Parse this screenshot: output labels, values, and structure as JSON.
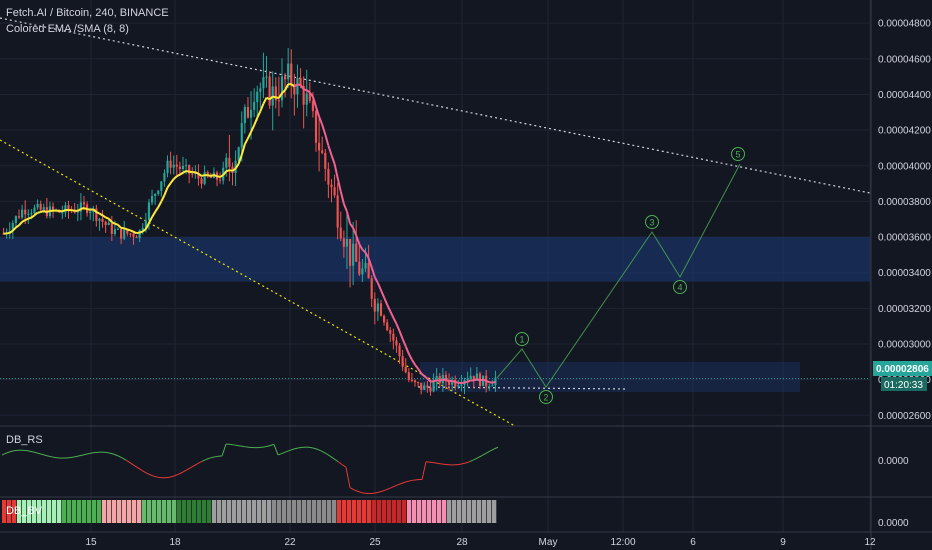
{
  "legend": {
    "symbol_line": "Fetch.AI / Bitcoin, 240, BINANCE",
    "indicator_line": "Colored EMA /SMA (8, 8)",
    "rs_label": "DB_RS",
    "bottom_label": "DB_BV"
  },
  "price_badge": {
    "value": "0.00002806",
    "countdown": "01:20:33"
  },
  "osc_axis_label": "0.0000",
  "osc2_axis_label": "0.0000",
  "colors": {
    "background": "#131722",
    "up": "#26a69a",
    "down": "#ef5350",
    "ema_up": "#ffeb3b",
    "ema_down": "#f06292",
    "wave": "#4caf50",
    "zone": "#1c3a7a",
    "trend_yellow": "#e6e600",
    "trend_white": "#d1d4dc"
  },
  "chart_data": [
    {
      "type": "candlestick",
      "title": "Fetch.AI / Bitcoin, 240, BINANCE",
      "y_axis_ticks": [
        "0.00004800",
        "0.00004600",
        "0.00004400",
        "0.00004200",
        "0.00004000",
        "0.00003800",
        "0.00003600",
        "0.00003400",
        "0.00003200",
        "0.00003000",
        "0.00002800",
        "0.00002600"
      ],
      "x_axis_ticks": [
        "15",
        "18",
        "22",
        "25",
        "28",
        "May",
        "12:00",
        "6",
        "9",
        "12"
      ],
      "ylim": [
        2.54e-05,
        4.93e-05
      ],
      "current_price": 2.806e-05,
      "price_path": [
        {
          "x": 1,
          "y": 3.62e-05
        },
        {
          "x": 5,
          "y": 3.76e-05
        },
        {
          "x": 12,
          "y": 3.74e-05
        },
        {
          "x": 18,
          "y": 3.77e-05
        },
        {
          "x": 22,
          "y": 3.65e-05
        },
        {
          "x": 24,
          "y": 3.62e-05
        },
        {
          "x": 28,
          "y": 3.62e-05
        },
        {
          "x": 30,
          "y": 3.78e-05
        },
        {
          "x": 34,
          "y": 4.02e-05
        },
        {
          "x": 40,
          "y": 3.93e-05
        },
        {
          "x": 44,
          "y": 3.93e-05
        },
        {
          "x": 47,
          "y": 4.05e-05
        },
        {
          "x": 51,
          "y": 4.45e-05
        },
        {
          "x": 55,
          "y": 4.4e-05
        },
        {
          "x": 58,
          "y": 4.5e-05
        },
        {
          "x": 61,
          "y": 4.4e-05
        },
        {
          "x": 64,
          "y": 4.1e-05
        },
        {
          "x": 67,
          "y": 3.8e-05
        },
        {
          "x": 70,
          "y": 3.5e-05
        },
        {
          "x": 73,
          "y": 3.38e-05
        },
        {
          "x": 76,
          "y": 3.2e-05
        },
        {
          "x": 79,
          "y": 3e-05
        },
        {
          "x": 82,
          "y": 2.78e-05
        },
        {
          "x": 85,
          "y": 2.75e-05
        },
        {
          "x": 88,
          "y": 2.8e-05
        },
        {
          "x": 91,
          "y": 2.79e-05
        },
        {
          "x": 94,
          "y": 2.83e-05
        },
        {
          "x": 97,
          "y": 2.78e-05
        },
        {
          "x": 99,
          "y": 2.806e-05
        }
      ],
      "wave_labels": [
        {
          "label": "1",
          "x": "28 Apr (proj.)",
          "y": 2.93e-05
        },
        {
          "label": "2",
          "x": "May (proj.)",
          "y": 2.7e-05
        },
        {
          "label": "3",
          "x": "May (proj.)",
          "y": 3.63e-05
        },
        {
          "label": "4",
          "x": "6 May (proj.)",
          "y": 3.34e-05
        },
        {
          "label": "5",
          "x": "7 May (proj.)",
          "y": 4.04e-05
        }
      ],
      "zones": [
        {
          "from": 3.35e-05,
          "to": 3.6e-05
        },
        {
          "from": 2.73e-05,
          "to": 2.9e-05
        }
      ]
    },
    {
      "type": "line",
      "title": "DB_RS",
      "y_axis_ticks": [
        "0.0000"
      ]
    },
    {
      "type": "heatmap",
      "title": "DB_BV",
      "y_axis_ticks": [
        "0.0000"
      ]
    }
  ]
}
